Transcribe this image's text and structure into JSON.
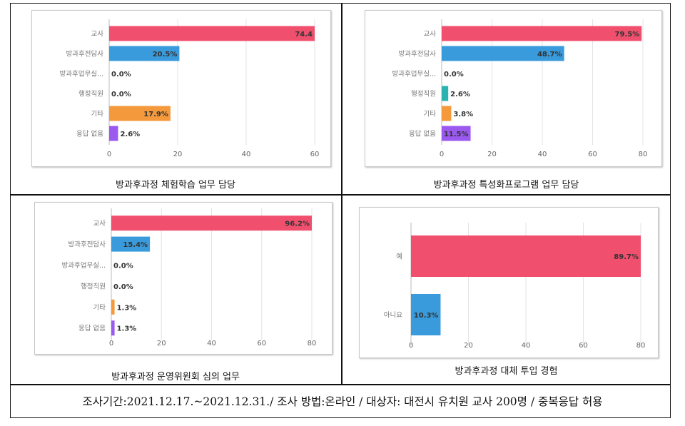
{
  "chart_data": [
    {
      "type": "bar",
      "orientation": "horizontal",
      "categories": [
        "교사",
        "방과후전담사",
        "방과후업무실...",
        "행정직원",
        "기타",
        "응답 없음"
      ],
      "values": [
        74.4,
        20.5,
        0.0,
        0.0,
        17.9,
        2.6
      ],
      "data_labels": [
        "74.4",
        "20.5%",
        "0.0%",
        "0.0%",
        "17.9%",
        "2.6%"
      ],
      "colors": [
        "#f0506e",
        "#3a9bdc",
        "#3a9bdc",
        "#2bb3b1",
        "#f59a3c",
        "#9b59f0"
      ],
      "xlim": [
        0,
        60
      ],
      "xticks": [
        "0",
        "20",
        "40",
        "60"
      ],
      "grid": true,
      "caption": "방과후과정 체험학습 업무 담당"
    },
    {
      "type": "bar",
      "orientation": "horizontal",
      "categories": [
        "교사",
        "방과후전담사",
        "방과후업무실...",
        "행정직원",
        "기타",
        "응답 없음"
      ],
      "values": [
        79.5,
        48.7,
        0.0,
        2.6,
        3.8,
        11.5
      ],
      "data_labels": [
        "79.5%",
        "48.7%",
        "0.0%",
        "2.6%",
        "3.8%",
        "11.5%"
      ],
      "colors": [
        "#f0506e",
        "#3a9bdc",
        "#3a9bdc",
        "#2bb3b1",
        "#f59a3c",
        "#9b59f0"
      ],
      "xlim": [
        0,
        80
      ],
      "xticks": [
        "0",
        "20",
        "40",
        "60",
        "80"
      ],
      "grid": true,
      "caption": "방과후과정 특성화프로그램 업무 담당"
    },
    {
      "type": "bar",
      "orientation": "horizontal",
      "categories": [
        "교사",
        "방과후전담사",
        "방과후업무실...",
        "행정직원",
        "기타",
        "응답 없음"
      ],
      "values": [
        96.2,
        15.4,
        0.0,
        0.0,
        1.3,
        1.3
      ],
      "data_labels": [
        "96.2%",
        "15.4%",
        "0.0%",
        "0.0%",
        "1.3%",
        "1.3%"
      ],
      "colors": [
        "#f0506e",
        "#3a9bdc",
        "#3a9bdc",
        "#2bb3b1",
        "#f59a3c",
        "#9b59f0"
      ],
      "xlim": [
        0,
        80
      ],
      "xticks": [
        "0",
        "20",
        "40",
        "60",
        "80"
      ],
      "grid": true,
      "caption": "방과후과정 운영위원회 심의 업무"
    },
    {
      "type": "bar",
      "orientation": "horizontal",
      "categories": [
        "예",
        "아니요"
      ],
      "values": [
        89.7,
        10.3
      ],
      "data_labels": [
        "89.7%",
        "10.3%"
      ],
      "colors": [
        "#f0506e",
        "#3a9bdc"
      ],
      "xlim": [
        0,
        80
      ],
      "xticks": [
        "0",
        "20",
        "40",
        "60",
        "80"
      ],
      "grid": true,
      "caption": "방과후과정 대체 투입 경험"
    }
  ],
  "footer": "조사기간:2021.12.17.~2021.12.31./ 조사 방법:온라인 / 대상자: 대전시 유치원 교사 200명 / 중복응답 허용"
}
